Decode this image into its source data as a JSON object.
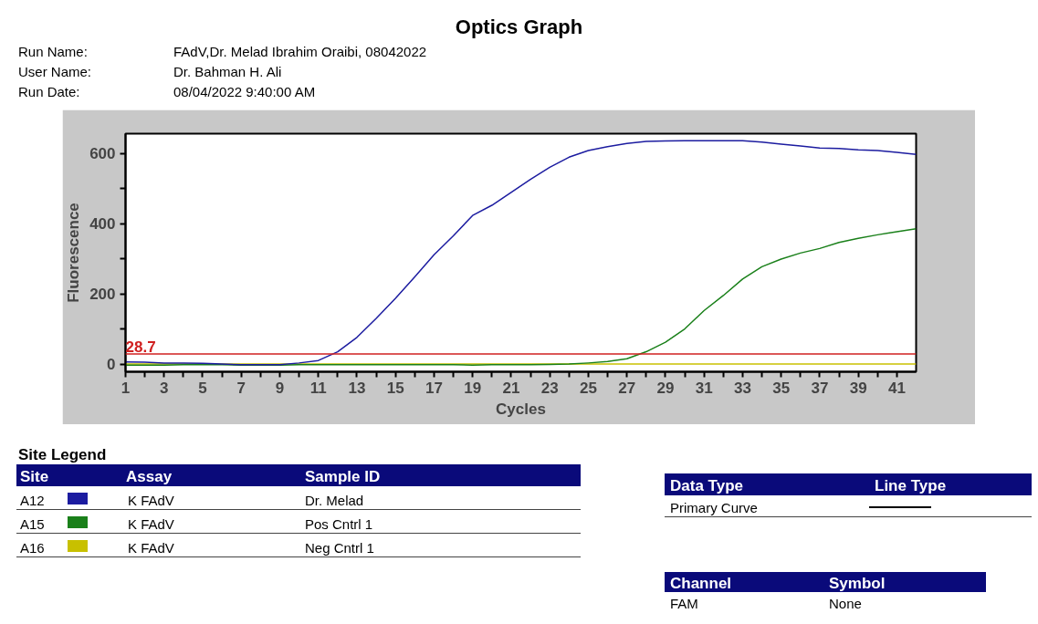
{
  "chart_data": {
    "type": "line",
    "title": "Optics Graph",
    "xlabel": "Cycles",
    "ylabel": "Fluorescence",
    "x": [
      1,
      2,
      3,
      4,
      5,
      6,
      7,
      8,
      9,
      10,
      11,
      12,
      13,
      14,
      15,
      16,
      17,
      18,
      19,
      20,
      21,
      22,
      23,
      24,
      25,
      26,
      27,
      28,
      29,
      30,
      31,
      32,
      33,
      34,
      35,
      36,
      37,
      38,
      39,
      40,
      41,
      42
    ],
    "series": [
      {
        "name": "A12",
        "color": "#1c1ca0",
        "values": [
          6,
          5,
          3,
          3,
          2,
          0,
          -2,
          -2,
          -2,
          3,
          10,
          35,
          76,
          130,
          187,
          248,
          311,
          365,
          423,
          452,
          489,
          526,
          560,
          589,
          608,
          619,
          628,
          634,
          635,
          636,
          636,
          636,
          636,
          632,
          626,
          621,
          615,
          614,
          610,
          608,
          603,
          597
        ]
      },
      {
        "name": "A15",
        "color": "#1a801a",
        "values": [
          -3,
          -3,
          -3,
          -2,
          -2,
          -2,
          -3,
          -3,
          -3,
          -2,
          -2,
          -2,
          -2,
          -2,
          -2,
          -2,
          -2,
          -2,
          -3,
          -2,
          -2,
          -2,
          -1,
          0,
          3,
          7,
          15,
          35,
          62,
          100,
          152,
          195,
          242,
          277,
          299,
          316,
          329,
          346,
          358,
          368,
          377,
          385
        ]
      },
      {
        "name": "A16",
        "color": "#c8c000",
        "values": [
          0,
          0,
          0,
          0,
          0,
          0,
          0,
          0,
          0,
          0,
          0,
          0,
          0,
          0,
          0,
          0,
          0,
          0,
          0,
          0,
          0,
          0,
          0,
          0,
          0,
          0,
          0,
          0,
          0,
          0,
          0,
          0,
          0,
          0,
          0,
          0,
          0,
          0,
          0,
          0,
          0,
          0
        ]
      }
    ],
    "xlim": [
      1,
      42
    ],
    "ylim": [
      -22,
      656
    ],
    "xticks": [
      1,
      {
        "value": 2,
        "label": null
      },
      3,
      {
        "value": 4,
        "label": null
      },
      5,
      {
        "value": 6,
        "label": null
      },
      7,
      {
        "value": 8,
        "label": null
      },
      9,
      {
        "value": 10,
        "label": null
      },
      11,
      {
        "value": 12,
        "label": null
      },
      13,
      {
        "value": 14,
        "label": null
      },
      15,
      {
        "value": 16,
        "label": null
      },
      17,
      {
        "value": 18,
        "label": null
      },
      19,
      {
        "value": 20,
        "label": null
      },
      21,
      {
        "value": 22,
        "label": null
      },
      23,
      {
        "value": 24,
        "label": null
      },
      25,
      {
        "value": 26,
        "label": null
      },
      27,
      {
        "value": 28,
        "label": null
      },
      29,
      {
        "value": 30,
        "label": null
      },
      31,
      {
        "value": 32,
        "label": null
      },
      33,
      {
        "value": 34,
        "label": null
      },
      35,
      {
        "value": 36,
        "label": null
      },
      37,
      {
        "value": 38,
        "label": null
      },
      39,
      {
        "value": 40,
        "label": null
      },
      41
    ],
    "yticks": [
      0,
      {
        "value": 100,
        "label": null
      },
      200,
      {
        "value": 300,
        "label": null
      },
      400,
      {
        "value": 500,
        "label": null
      },
      600
    ],
    "ref_lines": [
      {
        "axis": "y",
        "value": 28.7,
        "label": "28.7",
        "color": "#d02020"
      }
    ],
    "grid": false,
    "legend": "bottom",
    "line_style": "solid",
    "annotations": [
      "Run Name:",
      "FAdV,Dr. Melad Ibrahim Oraibi, 08042022",
      "User Name:",
      "Dr. Bahman H. Ali",
      "Run Date:",
      "08/04/2022 9:40:00 AM",
      "Site Legend",
      "Site",
      "Assay",
      "Sample ID",
      "K FAdV",
      "Dr. Melad",
      "K FAdV",
      "Pos Cntrl 1",
      "K FAdV",
      "Neg Cntrl 1",
      "Data Type",
      "Line Type",
      "Primary Curve",
      "Channel",
      "Symbol",
      "FAM",
      "None"
    ]
  }
}
